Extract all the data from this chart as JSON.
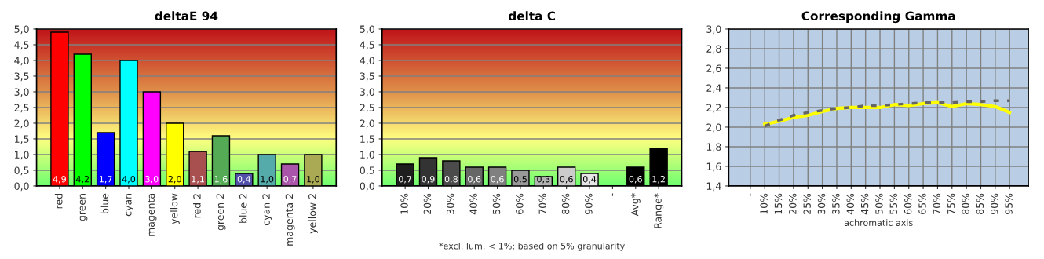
{
  "chart_data": [
    {
      "type": "bar",
      "title": "deltaE 94",
      "categories": [
        "red",
        "green",
        "blue",
        "cyan",
        "magenta",
        "yellow",
        "red 2",
        "green 2",
        "blue 2",
        "cyan 2",
        "magenta 2",
        "yellow 2"
      ],
      "values": [
        4.9,
        4.2,
        1.7,
        4.0,
        3.0,
        2.0,
        1.1,
        1.6,
        0.4,
        1.0,
        0.7,
        1.0
      ],
      "colors": [
        "#ff0000",
        "#00ff00",
        "#0000ff",
        "#00ffff",
        "#ff00ff",
        "#ffff00",
        "#a85050",
        "#55aa55",
        "#5050a8",
        "#55aaaa",
        "#aa55aa",
        "#aaaa55"
      ],
      "value_labels": [
        "4,9",
        "4,2",
        "1,7",
        "4,0",
        "3,0",
        "2,0",
        "1,1",
        "1,6",
        "0,4",
        "1,0",
        "0,7",
        "1,0"
      ],
      "ylim": [
        0,
        5
      ],
      "yticks": [
        {
          "value": 0,
          "label": "0,0"
        },
        {
          "value": 0.5,
          "label": "0,5"
        },
        {
          "value": 1,
          "label": "1,0"
        },
        {
          "value": 1.5,
          "label": "1,5"
        },
        {
          "value": 2,
          "label": "2,0"
        },
        {
          "value": 2.5,
          "label": "2,5"
        },
        {
          "value": 3,
          "label": "3,0"
        },
        {
          "value": 3.5,
          "label": "3,5"
        },
        {
          "value": 4,
          "label": "4,0"
        },
        {
          "value": 4.5,
          "label": "4,5"
        },
        {
          "value": 5,
          "label": "5,0"
        }
      ],
      "grid": "y"
    },
    {
      "type": "bar",
      "title": "delta C",
      "categories": [
        "10%",
        "20%",
        "30%",
        "40%",
        "50%",
        "60%",
        "70%",
        "80%",
        "90%",
        "-",
        "Avg*",
        "Range*"
      ],
      "values": [
        0.7,
        0.9,
        0.8,
        0.6,
        0.6,
        0.5,
        0.3,
        0.6,
        0.4,
        null,
        0.6,
        1.2
      ],
      "colors": [
        "#1e1e1e",
        "#333333",
        "#4b4b4b",
        "#666666",
        "#808080",
        "#999999",
        "#b3b3b3",
        "#cccccc",
        "#e6e6e6",
        "#000000",
        "#000000",
        "#000000"
      ],
      "value_labels": [
        "0,7",
        "0,9",
        "0,8",
        "0,6",
        "0,6",
        "0,5",
        "0,3",
        "0,6",
        "0,4",
        null,
        "0,6",
        "1,2"
      ],
      "ylim": [
        0,
        5
      ],
      "yticks": [
        {
          "value": 0,
          "label": "0,0"
        },
        {
          "value": 0.5,
          "label": "0,5"
        },
        {
          "value": 1,
          "label": "1,0"
        },
        {
          "value": 1.5,
          "label": "1,5"
        },
        {
          "value": 2,
          "label": "2,0"
        },
        {
          "value": 2.5,
          "label": "2,5"
        },
        {
          "value": 3,
          "label": "3,0"
        },
        {
          "value": 3.5,
          "label": "3,5"
        },
        {
          "value": 4,
          "label": "4,0"
        },
        {
          "value": 4.5,
          "label": "4,5"
        },
        {
          "value": 5,
          "label": "5,0"
        }
      ],
      "grid": "y",
      "annotations": [
        "*excl. lum. < 1%; based on 5% granularity"
      ]
    },
    {
      "type": "line",
      "title": "Corresponding Gamma",
      "xlabel": "achromatic axis",
      "categories": [
        "-",
        "10%",
        "15%",
        "20%",
        "25%",
        "30%",
        "35%",
        "40%",
        "45%",
        "50%",
        "55%",
        "60%",
        "65%",
        "70%",
        "75%",
        "80%",
        "85%",
        "90%",
        "95%"
      ],
      "series": [
        {
          "color": "#ffff00",
          "line_style": "solid",
          "values": [
            null,
            2.03,
            2.06,
            2.1,
            2.12,
            2.16,
            2.19,
            2.2,
            2.2,
            2.2,
            2.23,
            2.22,
            2.24,
            2.25,
            2.21,
            2.24,
            2.23,
            2.21,
            2.15
          ]
        },
        {
          "color": "#666666",
          "line_style": "dashed",
          "values": [
            null,
            2.01,
            2.07,
            2.12,
            2.15,
            2.17,
            2.19,
            2.2,
            2.22,
            2.22,
            2.23,
            2.24,
            2.25,
            2.25,
            2.25,
            2.26,
            2.26,
            2.27,
            2.27
          ]
        }
      ],
      "ylim": [
        1.4,
        3.0
      ],
      "yticks": [
        {
          "value": 1.4,
          "label": "1,4"
        },
        {
          "value": 1.6,
          "label": "1,6"
        },
        {
          "value": 1.8,
          "label": "1,8"
        },
        {
          "value": 2.0,
          "label": "2,0"
        },
        {
          "value": 2.2,
          "label": "2,2"
        },
        {
          "value": 2.4,
          "label": "2,4"
        },
        {
          "value": 2.6,
          "label": "2,6"
        },
        {
          "value": 2.8,
          "label": "2,8"
        },
        {
          "value": 3.0,
          "label": "3,0"
        }
      ],
      "grid": true
    }
  ]
}
